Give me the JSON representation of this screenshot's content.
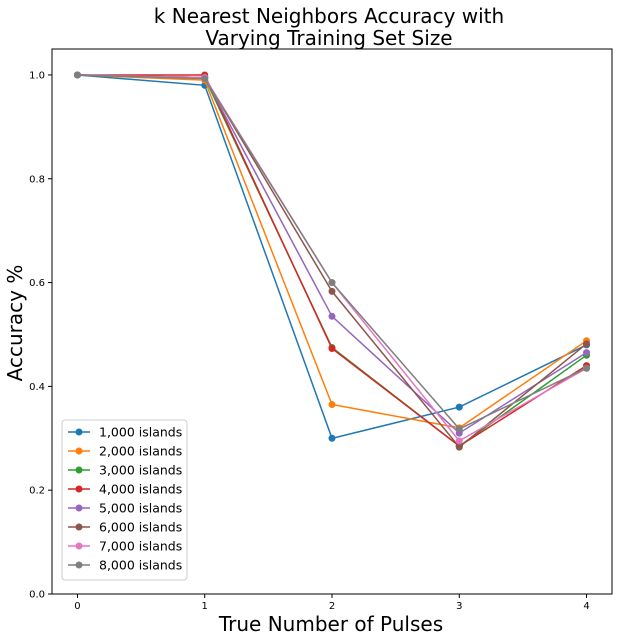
{
  "chart_data": {
    "type": "line",
    "title_lines": [
      "k Nearest Neighbors Accuracy with",
      "Varying Training Set Size"
    ],
    "xlabel": "True Number of Pulses",
    "ylabel": "Accuracy %",
    "x": [
      0,
      1,
      2,
      3,
      4
    ],
    "x_ticks": [
      0,
      1,
      2,
      3,
      4
    ],
    "y_ticks": [
      0.0,
      0.2,
      0.4,
      0.6,
      0.8,
      1.0
    ],
    "xlim": [
      -0.2,
      4.2
    ],
    "ylim": [
      0.0,
      1.05
    ],
    "grid": false,
    "legend_position": "lower-left",
    "series": [
      {
        "name": "1,000 islands",
        "color": "#1f77b4",
        "values": [
          1.0,
          0.98,
          0.3,
          0.36,
          0.48
        ]
      },
      {
        "name": "2,000 islands",
        "color": "#ff7f0e",
        "values": [
          1.0,
          0.99,
          0.365,
          0.32,
          0.488
        ]
      },
      {
        "name": "3,000 islands",
        "color": "#2ca02c",
        "values": [
          1.0,
          0.995,
          0.475,
          0.285,
          0.46
        ]
      },
      {
        "name": "4,000 islands",
        "color": "#d62728",
        "values": [
          1.0,
          1.0,
          0.473,
          0.285,
          0.44
        ]
      },
      {
        "name": "5,000 islands",
        "color": "#9467bd",
        "values": [
          1.0,
          0.995,
          0.535,
          0.31,
          0.465
        ]
      },
      {
        "name": "6,000 islands",
        "color": "#8c564b",
        "values": [
          1.0,
          0.995,
          0.583,
          0.283,
          0.482
        ]
      },
      {
        "name": "7,000 islands",
        "color": "#e377c2",
        "values": [
          1.0,
          0.995,
          0.6,
          0.295,
          0.435
        ]
      },
      {
        "name": "8,000 islands",
        "color": "#7f7f7f",
        "values": [
          1.0,
          0.993,
          0.6,
          0.318,
          0.435
        ]
      }
    ]
  }
}
